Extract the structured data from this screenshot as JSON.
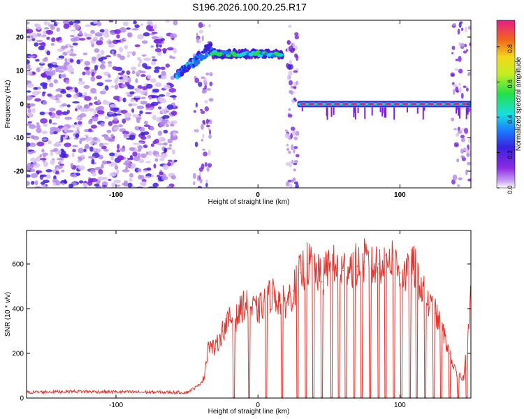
{
  "title": "S196.2026.100.20.25.R17",
  "chart_data": [
    {
      "type": "heatmap",
      "xlabel": "Height of straight line (km)",
      "ylabel": "Frequency (Hz)",
      "xlim": [
        -163,
        150
      ],
      "ylim": [
        -25,
        25
      ],
      "x_ticks": [
        -100,
        0,
        100
      ],
      "y_ticks": [
        -20,
        -10,
        0,
        10,
        20
      ],
      "colorbar": {
        "label": "Normalized spectral amplitude",
        "range": [
          0,
          0.95
        ],
        "ticks": [
          0.0,
          0.2,
          0.4,
          0.6,
          0.8
        ]
      },
      "features": [
        {
          "name": "noise",
          "x_range": [
            -163,
            -58
          ],
          "frequency_range": [
            -25,
            25
          ]
        },
        {
          "name": "rising-signal",
          "x_range": [
            -58,
            -32
          ],
          "frequency_start": 9,
          "frequency_end": 17
        },
        {
          "name": "upper-band",
          "x_range": [
            -32,
            17
          ],
          "frequency": 15
        },
        {
          "name": "carrier",
          "x_range": [
            29,
            150
          ],
          "frequency": 0
        }
      ]
    },
    {
      "type": "line",
      "xlabel": "Height of straight line (km)",
      "ylabel": "SNR (10 * v/v)",
      "xlim": [
        -163,
        150
      ],
      "ylim": [
        0,
        750
      ],
      "x_ticks": [
        -100,
        0,
        100
      ],
      "y_ticks": [
        0,
        200,
        400,
        600
      ],
      "series": [
        {
          "name": "SNR",
          "color": "#e8322a",
          "x": [
            -163,
            -150,
            -130,
            -110,
            -90,
            -70,
            -50,
            -42,
            -38,
            -35,
            -30,
            -25,
            -20,
            -15,
            -10,
            -5,
            0,
            5,
            10,
            15,
            20,
            25,
            30,
            35,
            40,
            45,
            50,
            55,
            60,
            65,
            70,
            75,
            80,
            85,
            90,
            95,
            100,
            105,
            110,
            115,
            120,
            125,
            130,
            135,
            140,
            145,
            150
          ],
          "values": [
            25,
            28,
            30,
            28,
            27,
            26,
            25,
            55,
            90,
            240,
            220,
            300,
            350,
            360,
            420,
            400,
            390,
            430,
            470,
            440,
            430,
            480,
            560,
            600,
            580,
            520,
            600,
            580,
            570,
            600,
            590,
            610,
            580,
            600,
            640,
            620,
            560,
            550,
            590,
            500,
            420,
            380,
            300,
            200,
            100,
            90,
            480
          ]
        }
      ]
    }
  ]
}
